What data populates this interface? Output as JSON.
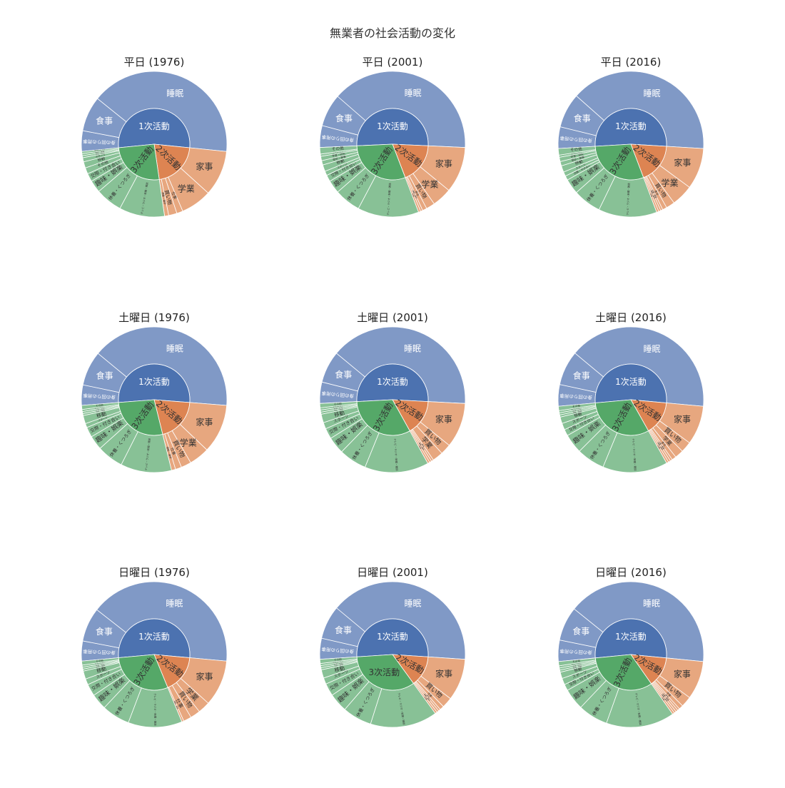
{
  "title": "無業者の社会活動の変化",
  "colors": {
    "inner": {
      "1次活動": "#4c72b0",
      "2次活動": "#dd8452",
      "3次活動": "#55a868"
    },
    "outer": {
      "1次活動": "#8099c6",
      "2次活動": "#e7a77f",
      "3次活動": "#88c196"
    }
  },
  "chart_data": [
    {
      "type": "sunburst",
      "title": "平日 (1976)",
      "children": [
        {
          "name": "1次活動",
          "children": [
            {
              "name": "睡眠",
              "value": 8.9
            },
            {
              "name": "食事",
              "value": 1.7
            },
            {
              "name": "身の回りの用事",
              "value": 1.0
            }
          ]
        },
        {
          "name": "2次活動",
          "children": [
            {
              "name": "家事",
              "value": 2.2
            },
            {
              "name": "学業",
              "value": 1.5
            },
            {
              "name": "仕事",
              "value": 0.3
            },
            {
              "name": "買い物",
              "value": 0.4
            },
            {
              "name": "通勤・通学",
              "value": 0.2
            }
          ]
        },
        {
          "name": "3次活動",
          "children": [
            {
              "name": "テレビ・ラジオ・新聞・雑誌",
              "value": 2.2
            },
            {
              "name": "休養・くつろぎ",
              "value": 1.3
            },
            {
              "name": "趣味・娯楽",
              "value": 0.6
            },
            {
              "name": "交際・付き合い",
              "value": 0.4
            },
            {
              "name": "その他",
              "value": 0.3
            },
            {
              "name": "移動",
              "value": 0.3
            },
            {
              "name": "スポーツ",
              "value": 0.2
            },
            {
              "name": "学習・研究",
              "value": 0.1
            },
            {
              "name": "受診・療養",
              "value": 0.1
            },
            {
              "name": "ボランティア",
              "value": 0.1
            }
          ]
        }
      ]
    },
    {
      "type": "sunburst",
      "title": "平日 (2001)",
      "children": [
        {
          "name": "1次活動",
          "children": [
            {
              "name": "睡眠",
              "value": 8.1
            },
            {
              "name": "食事",
              "value": 1.5
            },
            {
              "name": "身の回りの用事",
              "value": 1.0
            }
          ]
        },
        {
          "name": "2次活動",
          "children": [
            {
              "name": "家事",
              "value": 2.1
            },
            {
              "name": "学業",
              "value": 0.9
            },
            {
              "name": "買い物",
              "value": 0.4
            },
            {
              "name": "育児",
              "value": 0.2
            },
            {
              "name": "通勤・通学",
              "value": 0.1
            },
            {
              "name": "仕事",
              "value": 0.1
            }
          ]
        },
        {
          "name": "3次活動",
          "children": [
            {
              "name": "テレビ・ラジオ・新聞・雑誌",
              "value": 2.8
            },
            {
              "name": "休養・くつろぎ",
              "value": 1.2
            },
            {
              "name": "趣味・娯楽",
              "value": 0.6
            },
            {
              "name": "交際・付き合い",
              "value": 0.3
            },
            {
              "name": "スポーツ",
              "value": 0.2
            },
            {
              "name": "移動",
              "value": 0.3
            },
            {
              "name": "受診・療養",
              "value": 0.2
            },
            {
              "name": "学習・研究",
              "value": 0.2
            },
            {
              "name": "ボランティア",
              "value": 0.1
            },
            {
              "name": "その他",
              "value": 0.3
            }
          ]
        }
      ]
    },
    {
      "type": "sunburst",
      "title": "平日 (2016)",
      "children": [
        {
          "name": "1次活動",
          "children": [
            {
              "name": "睡眠",
              "value": 8.2
            },
            {
              "name": "食事",
              "value": 1.6
            },
            {
              "name": "身の回りの用事",
              "value": 1.0
            }
          ]
        },
        {
          "name": "2次活動",
          "children": [
            {
              "name": "家事",
              "value": 1.9
            },
            {
              "name": "学業",
              "value": 1.0
            },
            {
              "name": "買い物",
              "value": 0.4
            },
            {
              "name": "育児",
              "value": 0.2
            },
            {
              "name": "介護・看護",
              "value": 0.1
            },
            {
              "name": "通勤・通学",
              "value": 0.1
            },
            {
              "name": "仕事",
              "value": 0.1
            }
          ]
        },
        {
          "name": "3次活動",
          "children": [
            {
              "name": "テレビ・ラジオ・新聞・雑誌",
              "value": 2.7
            },
            {
              "name": "休養・くつろぎ",
              "value": 1.3
            },
            {
              "name": "趣味・娯楽",
              "value": 0.7
            },
            {
              "name": "交際・付き合い",
              "value": 0.2
            },
            {
              "name": "スポーツ",
              "value": 0.2
            },
            {
              "name": "移動",
              "value": 0.3
            },
            {
              "name": "受診・療養",
              "value": 0.2
            },
            {
              "name": "学習・研究",
              "value": 0.2
            },
            {
              "name": "ボランティア",
              "value": 0.1
            },
            {
              "name": "その他",
              "value": 0.3
            }
          ]
        }
      ]
    },
    {
      "type": "sunburst",
      "title": "土曜日 (1976)",
      "children": [
        {
          "name": "1次活動",
          "children": [
            {
              "name": "睡眠",
              "value": 8.9
            },
            {
              "name": "食事",
              "value": 1.7
            },
            {
              "name": "身の回りの用事",
              "value": 1.0
            }
          ]
        },
        {
          "name": "2次活動",
          "children": [
            {
              "name": "家事",
              "value": 2.4
            },
            {
              "name": "学業",
              "value": 1.0
            },
            {
              "name": "買い物",
              "value": 0.5
            },
            {
              "name": "仕事",
              "value": 0.3
            },
            {
              "name": "通勤・通学",
              "value": 0.2
            }
          ]
        },
        {
          "name": "3次活動",
          "children": [
            {
              "name": "テレビ・ラジオ・新聞・雑誌",
              "value": 2.5
            },
            {
              "name": "休養・くつろぎ",
              "value": 1.3
            },
            {
              "name": "趣味・娯楽",
              "value": 0.7
            },
            {
              "name": "交際・付き合い",
              "value": 0.5
            },
            {
              "name": "スポーツ",
              "value": 0.2
            },
            {
              "name": "移動",
              "value": 0.4
            },
            {
              "name": "受診・療養",
              "value": 0.1
            },
            {
              "name": "学習・研究",
              "value": 0.1
            },
            {
              "name": "ボランティア",
              "value": 0.1
            },
            {
              "name": "その他",
              "value": 0.2
            }
          ]
        }
      ]
    },
    {
      "type": "sunburst",
      "title": "土曜日 (2001)",
      "children": [
        {
          "name": "1次活動",
          "children": [
            {
              "name": "睡眠",
              "value": 8.4
            },
            {
              "name": "食事",
              "value": 1.5
            },
            {
              "name": "身の回りの用事",
              "value": 1.0
            }
          ]
        },
        {
          "name": "2次活動",
          "children": [
            {
              "name": "家事",
              "value": 2.1
            },
            {
              "name": "買い物",
              "value": 0.5
            },
            {
              "name": "学業",
              "value": 0.5
            },
            {
              "name": "育児",
              "value": 0.1
            },
            {
              "name": "通勤・通学",
              "value": 0.1
            },
            {
              "name": "仕事",
              "value": 0.1
            }
          ]
        },
        {
          "name": "3次活動",
          "children": [
            {
              "name": "テレビ・ラジオ・新聞・雑誌",
              "value": 3.0
            },
            {
              "name": "休養・くつろぎ",
              "value": 1.3
            },
            {
              "name": "趣味・娯楽",
              "value": 0.8
            },
            {
              "name": "交際・付き合い",
              "value": 0.5
            },
            {
              "name": "スポーツ",
              "value": 0.3
            },
            {
              "name": "移動",
              "value": 0.4
            },
            {
              "name": "受診・療養",
              "value": 0.1
            },
            {
              "name": "学習・研究",
              "value": 0.1
            },
            {
              "name": "ボランティア",
              "value": 0.1
            },
            {
              "name": "その他",
              "value": 0.2
            }
          ]
        }
      ]
    },
    {
      "type": "sunburst",
      "title": "土曜日 (2016)",
      "children": [
        {
          "name": "1次活動",
          "children": [
            {
              "name": "睡眠",
              "value": 8.4
            },
            {
              "name": "食事",
              "value": 1.6
            },
            {
              "name": "身の回りの用事",
              "value": 1.0
            }
          ]
        },
        {
          "name": "2次活動",
          "children": [
            {
              "name": "家事",
              "value": 1.8
            },
            {
              "name": "買い物",
              "value": 0.5
            },
            {
              "name": "学業",
              "value": 0.4
            },
            {
              "name": "育児",
              "value": 0.2
            },
            {
              "name": "介護・看護",
              "value": 0.1
            },
            {
              "name": "通勤・通学",
              "value": 0.1
            },
            {
              "name": "仕事",
              "value": 0.1
            }
          ]
        },
        {
          "name": "3次活動",
          "children": [
            {
              "name": "テレビ・ラジオ・新聞・雑誌",
              "value": 3.0
            },
            {
              "name": "休養・くつろぎ",
              "value": 1.3
            },
            {
              "name": "趣味・娯楽",
              "value": 0.9
            },
            {
              "name": "交際・付き合い",
              "value": 0.3
            },
            {
              "name": "スポーツ",
              "value": 0.3
            },
            {
              "name": "移動",
              "value": 0.3
            },
            {
              "name": "受診・療養",
              "value": 0.1
            },
            {
              "name": "学習・研究",
              "value": 0.1
            },
            {
              "name": "ボランティア",
              "value": 0.1
            },
            {
              "name": "その他",
              "value": 0.2
            }
          ]
        }
      ]
    },
    {
      "type": "sunburst",
      "title": "日曜日 (1976)",
      "children": [
        {
          "name": "1次活動",
          "children": [
            {
              "name": "睡眠",
              "value": 9.2
            },
            {
              "name": "食事",
              "value": 1.7
            },
            {
              "name": "身の回りの用事",
              "value": 1.0
            }
          ]
        },
        {
          "name": "2次活動",
          "children": [
            {
              "name": "家事",
              "value": 2.3
            },
            {
              "name": "学業",
              "value": 0.6
            },
            {
              "name": "買い物",
              "value": 0.5
            },
            {
              "name": "仕事",
              "value": 0.4
            },
            {
              "name": "通勤・通学",
              "value": 0.1
            }
          ]
        },
        {
          "name": "3次活動",
          "children": [
            {
              "name": "テレビ・ラジオ・新聞・雑誌",
              "value": 2.7
            },
            {
              "name": "休養・くつろぎ",
              "value": 1.4
            },
            {
              "name": "趣味・娯楽",
              "value": 0.8
            },
            {
              "name": "交際・付き合い",
              "value": 0.6
            },
            {
              "name": "スポーツ",
              "value": 0.3
            },
            {
              "name": "移動",
              "value": 0.4
            },
            {
              "name": "受診・療養",
              "value": 0.1
            },
            {
              "name": "学習・研究",
              "value": 0.1
            },
            {
              "name": "ボランティア",
              "value": 0.1
            },
            {
              "name": "その他",
              "value": 0.2
            }
          ]
        }
      ]
    },
    {
      "type": "sunburst",
      "title": "日曜日 (2001)",
      "children": [
        {
          "name": "1次活動",
          "children": [
            {
              "name": "睡眠",
              "value": 8.6
            },
            {
              "name": "食事",
              "value": 1.6
            },
            {
              "name": "身の回りの用事",
              "value": 1.0
            }
          ]
        },
        {
          "name": "2次活動",
          "children": [
            {
              "name": "家事",
              "value": 2.0
            },
            {
              "name": "買い物",
              "value": 0.5
            },
            {
              "name": "学業",
              "value": 0.2
            },
            {
              "name": "育児",
              "value": 0.1
            },
            {
              "name": "通勤・通学",
              "value": 0.1
            },
            {
              "name": "仕事",
              "value": 0.1
            }
          ]
        },
        {
          "name": "3次活動",
          "children": [
            {
              "name": "テレビ・ラジオ・新聞・雑誌",
              "value": 3.2
            },
            {
              "name": "休養・くつろぎ",
              "value": 1.4
            },
            {
              "name": "趣味・娯楽",
              "value": 0.9
            },
            {
              "name": "交際・付き合い",
              "value": 0.6
            },
            {
              "name": "スポーツ",
              "value": 0.3
            },
            {
              "name": "移動",
              "value": 0.4
            },
            {
              "name": "受診・療養",
              "value": 0.1
            },
            {
              "name": "学習・研究",
              "value": 0.1
            },
            {
              "name": "ボランティア",
              "value": 0.1
            },
            {
              "name": "その他",
              "value": 0.2
            }
          ]
        }
      ]
    },
    {
      "type": "sunburst",
      "title": "日曜日 (2016)",
      "children": [
        {
          "name": "1次活動",
          "children": [
            {
              "name": "睡眠",
              "value": 8.6
            },
            {
              "name": "食事",
              "value": 1.6
            },
            {
              "name": "身の回りの用事",
              "value": 1.0
            }
          ]
        },
        {
          "name": "2次活動",
          "children": [
            {
              "name": "家事",
              "value": 1.8
            },
            {
              "name": "買い物",
              "value": 0.5
            },
            {
              "name": "学業",
              "value": 0.2
            },
            {
              "name": "育児",
              "value": 0.1
            },
            {
              "name": "介護・看護",
              "value": 0.1
            },
            {
              "name": "通勤・通学",
              "value": 0.1
            },
            {
              "name": "仕事",
              "value": 0.1
            }
          ]
        },
        {
          "name": "3次活動",
          "children": [
            {
              "name": "テレビ・ラジオ・新聞・雑誌",
              "value": 3.2
            },
            {
              "name": "休養・くつろぎ",
              "value": 1.4
            },
            {
              "name": "趣味・娯楽",
              "value": 1.0
            },
            {
              "name": "交際・付き合い",
              "value": 0.3
            },
            {
              "name": "スポーツ",
              "value": 0.3
            },
            {
              "name": "移動",
              "value": 0.3
            },
            {
              "name": "受診・療養",
              "value": 0.1
            },
            {
              "name": "学習・研究",
              "value": 0.1
            },
            {
              "name": "ボランティア",
              "value": 0.1
            },
            {
              "name": "その他",
              "value": 0.2
            }
          ]
        }
      ]
    }
  ]
}
